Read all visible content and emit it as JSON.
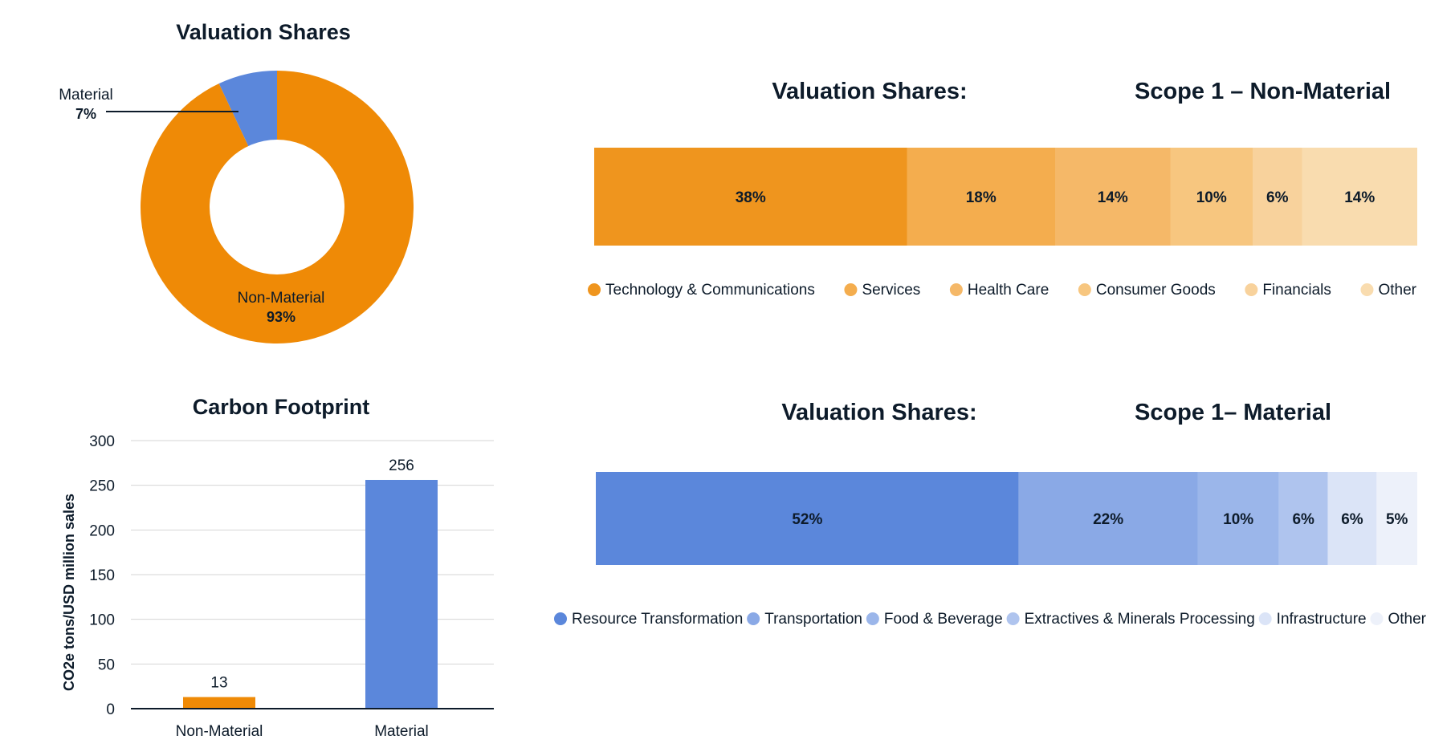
{
  "chart_data": [
    {
      "type": "pie",
      "title": "Valuation Shares",
      "slices": [
        {
          "label": "Non-Material",
          "value": 93,
          "display": "93%",
          "color": "#ef8a06"
        },
        {
          "label": "Material",
          "value": 7,
          "display": "7%",
          "color": "#5b87db"
        }
      ]
    },
    {
      "type": "bar",
      "title": "Carbon Footprint",
      "ylabel": "CO2e tons/USD million sales",
      "categories": [
        "Non-Material",
        "Material"
      ],
      "values": [
        13,
        256
      ],
      "value_labels": [
        "13",
        "256"
      ],
      "colors": [
        "#ef8a06",
        "#5b87db"
      ],
      "ylim": [
        0,
        300
      ],
      "yticks": [
        0,
        50,
        100,
        150,
        200,
        250,
        300
      ],
      "ytick_labels": [
        "0",
        "50",
        "100",
        "150",
        "200",
        "250",
        "300"
      ]
    },
    {
      "type": "bar",
      "stacked": true,
      "title_left": "Valuation Shares:",
      "title_right": "Scope 1 – Non-Material",
      "segments": [
        {
          "name": "Technology & Communications",
          "value": 38,
          "display": "38%",
          "color": "#ef951e"
        },
        {
          "name": "Services",
          "value": 18,
          "display": "18%",
          "color": "#f4ad4e"
        },
        {
          "name": "Health Care",
          "value": 14,
          "display": "14%",
          "color": "#f5b868"
        },
        {
          "name": "Consumer Goods",
          "value": 10,
          "display": "10%",
          "color": "#f7c67f"
        },
        {
          "name": "Financials",
          "value": 6,
          "display": "6%",
          "color": "#f8d29c"
        },
        {
          "name": "Other",
          "value": 14,
          "display": "14%",
          "color": "#f9dcaf"
        }
      ]
    },
    {
      "type": "bar",
      "stacked": true,
      "title_left": "Valuation Shares:",
      "title_right": "Scope 1– Material",
      "segments": [
        {
          "name": "Resource Transformation",
          "value": 52,
          "display": "52%",
          "color": "#5b87db"
        },
        {
          "name": "Transportation",
          "value": 22,
          "display": "22%",
          "color": "#8aa9e6"
        },
        {
          "name": "Food & Beverage",
          "value": 10,
          "display": "10%",
          "color": "#9bb6ea"
        },
        {
          "name": "Extractives & Minerals Processing",
          "value": 6,
          "display": "6%",
          "color": "#afc4ee"
        },
        {
          "name": "Infrastructure",
          "value": 6,
          "display": "6%",
          "color": "#dbe4f7"
        },
        {
          "name": "Other",
          "value": 5,
          "display": "5%",
          "color": "#edf1fa"
        }
      ]
    }
  ]
}
